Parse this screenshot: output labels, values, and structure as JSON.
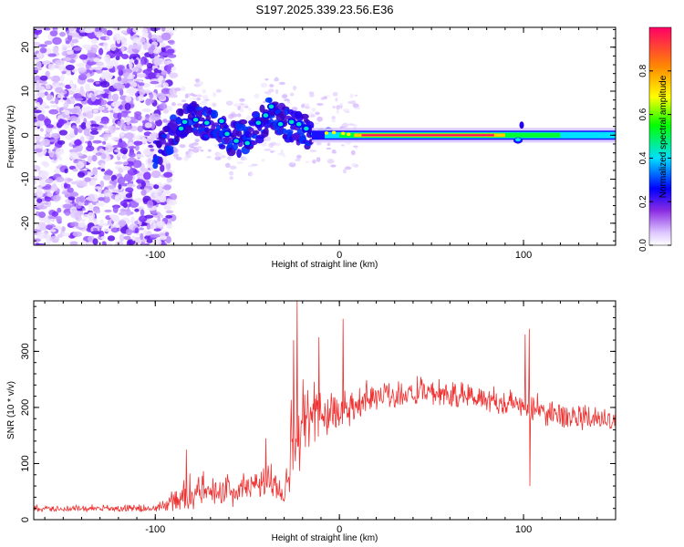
{
  "title": "S197.2025.339.23.56.E36",
  "chart_data": [
    {
      "type": "heatmap",
      "title": "S197.2025.339.23.56.E36",
      "xlabel": "Height of straight line (km)",
      "ylabel": "Frequency (Hz)",
      "xlim": [
        -166,
        150
      ],
      "ylim": [
        -25,
        24.5
      ],
      "xticks": [
        -100,
        0,
        100
      ],
      "yticks": [
        -20,
        -10,
        0,
        10,
        20
      ],
      "colorbar": {
        "label": "Normalized spectral amplitude",
        "range": [
          0.0,
          1.0
        ],
        "ticks": [
          0.0,
          0.2,
          0.4,
          0.6,
          0.8
        ],
        "tick_labels": [
          "0.0",
          "0.2",
          "0.4",
          "0.6",
          "0.8"
        ]
      },
      "ridge": [
        {
          "x": -100,
          "y": -5
        },
        {
          "x": -88,
          "y": 2
        },
        {
          "x": -78,
          "y": 4
        },
        {
          "x": -68,
          "y": 2
        },
        {
          "x": -58,
          "y": -1
        },
        {
          "x": -48,
          "y": 0
        },
        {
          "x": -38,
          "y": 5
        },
        {
          "x": -30,
          "y": 3
        },
        {
          "x": -20,
          "y": 1
        },
        {
          "x": -10,
          "y": 0.5
        },
        {
          "x": 0,
          "y": 0.3
        },
        {
          "x": 50,
          "y": 0
        },
        {
          "x": 100,
          "y": 0
        },
        {
          "x": 150,
          "y": 0
        }
      ]
    },
    {
      "type": "line",
      "xlabel": "Height of straight line (km)",
      "ylabel": "SNR (10 * v/v)",
      "xlim": [
        -166,
        150
      ],
      "ylim": [
        0,
        390
      ],
      "xticks": [
        -100,
        0,
        100
      ],
      "yticks": [
        0,
        100,
        200,
        300
      ],
      "color": "#ee3333",
      "series": [
        {
          "name": "SNR",
          "envelope": [
            {
              "x": -166,
              "base": 18,
              "amp": 12
            },
            {
              "x": -100,
              "base": 18,
              "amp": 14
            },
            {
              "x": -88,
              "base": 30,
              "amp": 40
            },
            {
              "x": -80,
              "base": 40,
              "amp": 70
            },
            {
              "x": -70,
              "base": 45,
              "amp": 50
            },
            {
              "x": -55,
              "base": 45,
              "amp": 60
            },
            {
              "x": -45,
              "base": 55,
              "amp": 60
            },
            {
              "x": -35,
              "base": 60,
              "amp": 70
            },
            {
              "x": -30,
              "base": 35,
              "amp": 25
            },
            {
              "x": -26,
              "base": 120,
              "amp": 200
            },
            {
              "x": -20,
              "base": 150,
              "amp": 150
            },
            {
              "x": -10,
              "base": 175,
              "amp": 120
            },
            {
              "x": 0,
              "base": 180,
              "amp": 90
            },
            {
              "x": 10,
              "base": 200,
              "amp": 70
            },
            {
              "x": 20,
              "base": 215,
              "amp": 60
            },
            {
              "x": 50,
              "base": 220,
              "amp": 50
            },
            {
              "x": 80,
              "base": 210,
              "amp": 55
            },
            {
              "x": 100,
              "base": 195,
              "amp": 60
            },
            {
              "x": 120,
              "base": 180,
              "amp": 50
            },
            {
              "x": 150,
              "base": 170,
              "amp": 45
            }
          ],
          "spikes": [
            {
              "x": -83,
              "y": 125
            },
            {
              "x": -40,
              "y": 145
            },
            {
              "x": -25,
              "y": 320
            },
            {
              "x": -23,
              "y": 390
            },
            {
              "x": -11,
              "y": 325
            },
            {
              "x": 2,
              "y": 358
            },
            {
              "x": 101,
              "y": 330
            },
            {
              "x": 103,
              "y": 340
            },
            {
              "x": 103.5,
              "y": 60
            }
          ]
        }
      ]
    }
  ]
}
